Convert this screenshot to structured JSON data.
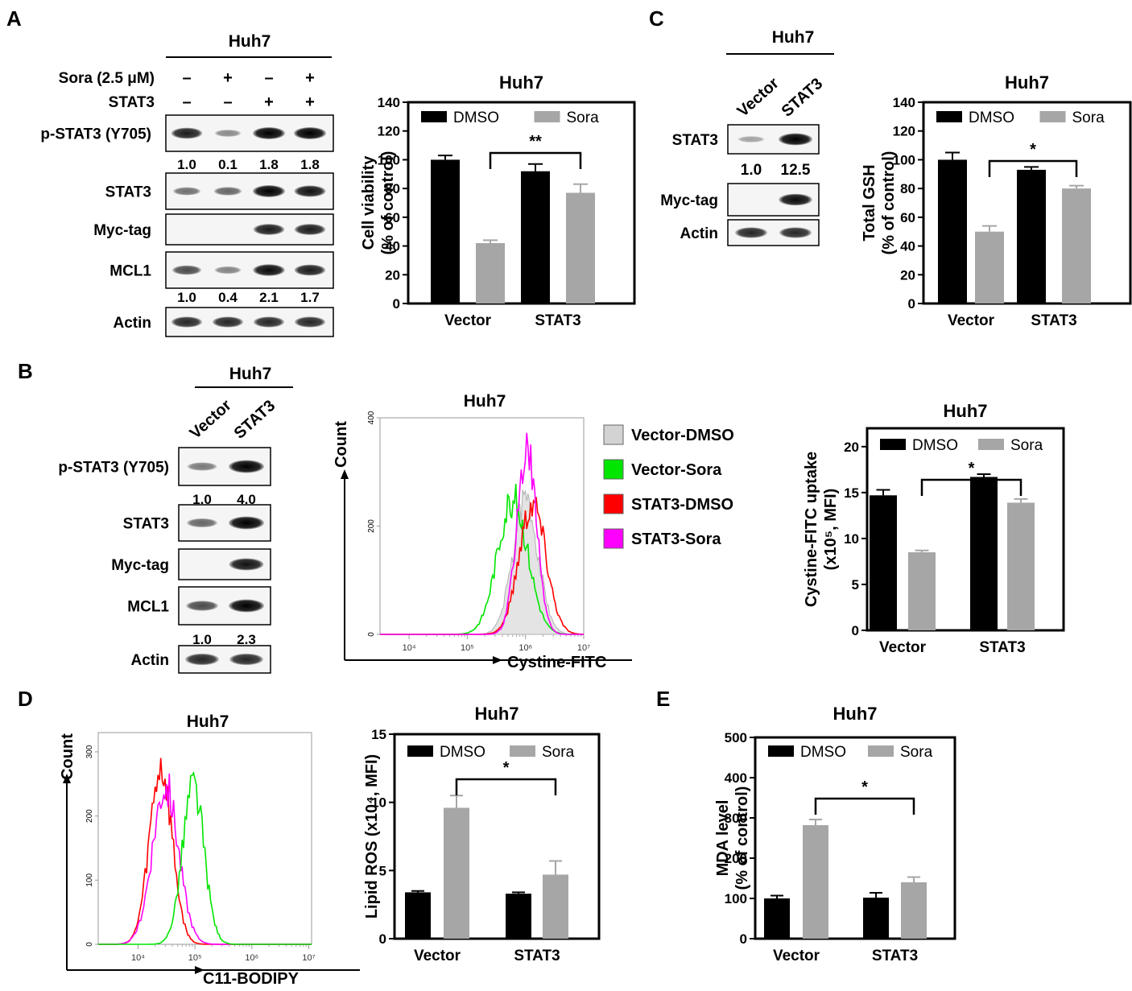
{
  "panels": {
    "A": "A",
    "B": "B",
    "C": "C",
    "D": "D",
    "E": "E"
  },
  "western_A": {
    "title": "Huh7",
    "cond_labels": [
      "Sora (2.5 μM)",
      "STAT3"
    ],
    "cond_signs": [
      [
        "–",
        "+",
        "–",
        "+"
      ],
      [
        "–",
        "–",
        "+",
        "+"
      ]
    ],
    "blots": [
      {
        "label": "p-STAT3 (Y705)",
        "quant": [
          "1.0",
          "0.1",
          "1.8",
          "1.8"
        ],
        "intensity": [
          0.85,
          0.25,
          1,
          1
        ]
      },
      {
        "label": "STAT3",
        "intensity": [
          0.4,
          0.45,
          1,
          0.9
        ]
      },
      {
        "label": "Myc-tag",
        "intensity": [
          0,
          0,
          0.85,
          0.85
        ]
      },
      {
        "label": "MCL1",
        "quant": [
          "1.0",
          "0.4",
          "2.1",
          "1.7"
        ],
        "intensity": [
          0.6,
          0.3,
          0.95,
          0.85
        ]
      },
      {
        "label": "Actin",
        "intensity": [
          0.8,
          0.8,
          0.8,
          0.8
        ]
      }
    ]
  },
  "western_B": {
    "title": "Huh7",
    "lanes": [
      "Vector",
      "STAT3"
    ],
    "blots": [
      {
        "label": "p-STAT3 (Y705)",
        "quant": [
          "1.0",
          "4.0"
        ],
        "intensity": [
          0.35,
          1
        ]
      },
      {
        "label": "STAT3",
        "intensity": [
          0.45,
          1
        ]
      },
      {
        "label": "Myc-tag",
        "intensity": [
          0,
          0.9
        ]
      },
      {
        "label": "MCL1",
        "quant": [
          "1.0",
          "2.3"
        ],
        "intensity": [
          0.6,
          1
        ]
      },
      {
        "label": "Actin",
        "intensity": [
          0.8,
          0.8
        ]
      }
    ]
  },
  "western_C": {
    "title": "Huh7",
    "lanes": [
      "Vector",
      "STAT3"
    ],
    "blots": [
      {
        "label": "STAT3",
        "quant": [
          "1.0",
          "12.5"
        ],
        "intensity": [
          0.12,
          1
        ]
      },
      {
        "label": "Myc-tag",
        "intensity": [
          0,
          0.95
        ]
      },
      {
        "label": "Actin",
        "intensity": [
          0.8,
          0.8
        ]
      }
    ]
  },
  "chart_data": [
    {
      "id": "A_viability",
      "type": "bar",
      "title": "Huh7",
      "categories": [
        "Vector",
        "STAT3"
      ],
      "series": [
        {
          "name": "DMSO",
          "color": "#000000",
          "values": [
            100,
            92
          ],
          "errors": [
            3,
            5
          ]
        },
        {
          "name": "Sora",
          "color": "#a6a6a6",
          "values": [
            42,
            77
          ],
          "errors": [
            2,
            6
          ]
        }
      ],
      "ylabel": "Cell viability\n(% of control)",
      "ylim": [
        0,
        140
      ],
      "yticks": [
        0,
        20,
        40,
        60,
        80,
        100,
        120,
        140
      ],
      "significance": "**"
    },
    {
      "id": "C_gsh",
      "type": "bar",
      "title": "Huh7",
      "categories": [
        "Vector",
        "STAT3"
      ],
      "series": [
        {
          "name": "DMSO",
          "color": "#000000",
          "values": [
            100,
            93
          ],
          "errors": [
            5,
            2
          ]
        },
        {
          "name": "Sora",
          "color": "#a6a6a6",
          "values": [
            50,
            80
          ],
          "errors": [
            4,
            2
          ]
        }
      ],
      "ylabel": "Total GSH\n(% of control)",
      "ylim": [
        0,
        140
      ],
      "yticks": [
        0,
        20,
        40,
        60,
        80,
        100,
        120,
        140
      ],
      "significance": "*"
    },
    {
      "id": "B_uptake",
      "type": "bar",
      "title": "Huh7",
      "categories": [
        "Vector",
        "STAT3"
      ],
      "series": [
        {
          "name": "DMSO",
          "color": "#000000",
          "values": [
            14.7,
            16.7
          ],
          "errors": [
            0.6,
            0.3
          ]
        },
        {
          "name": "Sora",
          "color": "#a6a6a6",
          "values": [
            8.5,
            13.9
          ],
          "errors": [
            0.2,
            0.4
          ]
        }
      ],
      "ylabel": "Cystine-FITC uptake\n(x10⁵, MFI)",
      "ylim": [
        0,
        22
      ],
      "yticks": [
        0,
        5,
        10,
        15,
        20
      ],
      "significance": "*"
    },
    {
      "id": "D_ros",
      "type": "bar",
      "title": "Huh7",
      "categories": [
        "Vector",
        "STAT3"
      ],
      "series": [
        {
          "name": "DMSO",
          "color": "#000000",
          "values": [
            3.4,
            3.3
          ],
          "errors": [
            0.1,
            0.1
          ]
        },
        {
          "name": "Sora",
          "color": "#a6a6a6",
          "values": [
            9.6,
            4.7
          ],
          "errors": [
            0.9,
            1.0
          ]
        }
      ],
      "ylabel": "Lipid ROS (x10⁴, MFI)",
      "ylim": [
        0,
        15
      ],
      "yticks": [
        0,
        5,
        10,
        15
      ],
      "significance": "*"
    },
    {
      "id": "E_mda",
      "type": "bar",
      "title": "Huh7",
      "categories": [
        "Vector",
        "STAT3"
      ],
      "series": [
        {
          "name": "DMSO",
          "color": "#000000",
          "values": [
            100,
            102
          ],
          "errors": [
            7,
            12
          ]
        },
        {
          "name": "Sora",
          "color": "#a6a6a6",
          "values": [
            282,
            140
          ],
          "errors": [
            14,
            13
          ]
        }
      ],
      "ylabel": "MDA level\n(% of control)",
      "ylim": [
        0,
        500
      ],
      "yticks": [
        0,
        100,
        200,
        300,
        400,
        500
      ],
      "significance": "*"
    },
    {
      "id": "B_flow",
      "type": "line",
      "title": "Huh7",
      "xlabel": "Cystine-FITC",
      "ylabel": "Count",
      "ylim": [
        0,
        400
      ],
      "yticks": [
        "0",
        "200",
        "400"
      ],
      "xticks": [
        "10⁴",
        "10⁵",
        "10⁶",
        "10⁷"
      ],
      "xdecades": [
        3.5,
        7
      ],
      "series": [
        {
          "name": "Vector-DMSO",
          "color": "#d3d3d3",
          "mu": 6.0,
          "sd": 0.22,
          "peak": 245
        },
        {
          "name": "Vector-Sora",
          "color": "#00e600",
          "mu": 5.78,
          "sd": 0.26,
          "peak": 250
        },
        {
          "name": "STAT3-DMSO",
          "color": "#ff0000",
          "mu": 6.12,
          "sd": 0.23,
          "peak": 245
        },
        {
          "name": "STAT3-Sora",
          "color": "#ff00ff",
          "mu": 6.02,
          "sd": 0.17,
          "peak": 335
        }
      ]
    },
    {
      "id": "D_flow",
      "type": "line",
      "title": "Huh7",
      "xlabel": "C11-BODIPY",
      "ylabel": "Count",
      "ylim": [
        0,
        330
      ],
      "yticks": [
        "0",
        "100",
        "200",
        "300"
      ],
      "xticks": [
        "10⁴",
        "10⁵",
        "10⁶",
        "10⁷"
      ],
      "xdecades": [
        3.3,
        7.05
      ],
      "series": [
        {
          "name": "red",
          "color": "#ff0000",
          "mu": 4.4,
          "sd": 0.2,
          "peak": 275
        },
        {
          "name": "magenta",
          "color": "#ff00ff",
          "mu": 4.48,
          "sd": 0.23,
          "peak": 245
        },
        {
          "name": "green",
          "color": "#00e600",
          "mu": 4.97,
          "sd": 0.19,
          "peak": 245
        }
      ]
    }
  ]
}
